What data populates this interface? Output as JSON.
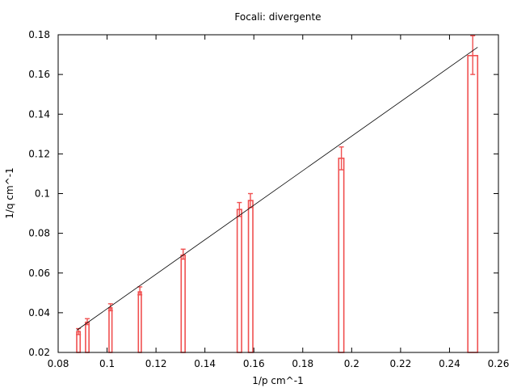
{
  "chart_data": {
    "type": "bar",
    "title": "Focali: divergente",
    "xlabel": "1/p cm^-1",
    "ylabel": "1/q cm^-1",
    "xlim": [
      0.08,
      0.26
    ],
    "ylim": [
      0.02,
      0.18
    ],
    "xticks": [
      "0.08",
      "0.1",
      "0.12",
      "0.14",
      "0.16",
      "0.18",
      "0.2",
      "0.22",
      "0.24",
      "0.26"
    ],
    "yticks": [
      "0.02",
      "0.04",
      "0.06",
      "0.08",
      "0.1",
      "0.12",
      "0.14",
      "0.16",
      "0.18"
    ],
    "grid": false,
    "colors": {
      "bars": "#f05050",
      "fit_line": "#000000"
    },
    "points": [
      {
        "x": 0.0883,
        "y": 0.0305,
        "ylow": 0.029,
        "yhigh": 0.032,
        "xlow": 0.0876,
        "xhigh": 0.089
      },
      {
        "x": 0.0919,
        "y": 0.0352,
        "ylow": 0.034,
        "yhigh": 0.037,
        "xlow": 0.0912,
        "xhigh": 0.0926
      },
      {
        "x": 0.1014,
        "y": 0.0425,
        "ylow": 0.041,
        "yhigh": 0.0445,
        "xlow": 0.1008,
        "xhigh": 0.102
      },
      {
        "x": 0.1134,
        "y": 0.0505,
        "ylow": 0.049,
        "yhigh": 0.053,
        "xlow": 0.1128,
        "xhigh": 0.114
      },
      {
        "x": 0.1311,
        "y": 0.069,
        "ylow": 0.067,
        "yhigh": 0.072,
        "xlow": 0.1303,
        "xhigh": 0.1319
      },
      {
        "x": 0.1541,
        "y": 0.092,
        "ylow": 0.0885,
        "yhigh": 0.0955,
        "xlow": 0.1532,
        "xhigh": 0.155
      },
      {
        "x": 0.1586,
        "y": 0.0965,
        "ylow": 0.093,
        "yhigh": 0.1,
        "xlow": 0.1578,
        "xhigh": 0.1596
      },
      {
        "x": 0.1958,
        "y": 0.1178,
        "ylow": 0.112,
        "yhigh": 0.1235,
        "xlow": 0.1947,
        "xhigh": 0.1968
      },
      {
        "x": 0.2495,
        "y": 0.1695,
        "ylow": 0.16,
        "yhigh": 0.1795,
        "xlow": 0.2475,
        "xhigh": 0.2515
      }
    ],
    "fit_line": {
      "x": [
        0.0876,
        0.2515
      ],
      "y": [
        0.0312,
        0.1737
      ]
    }
  }
}
